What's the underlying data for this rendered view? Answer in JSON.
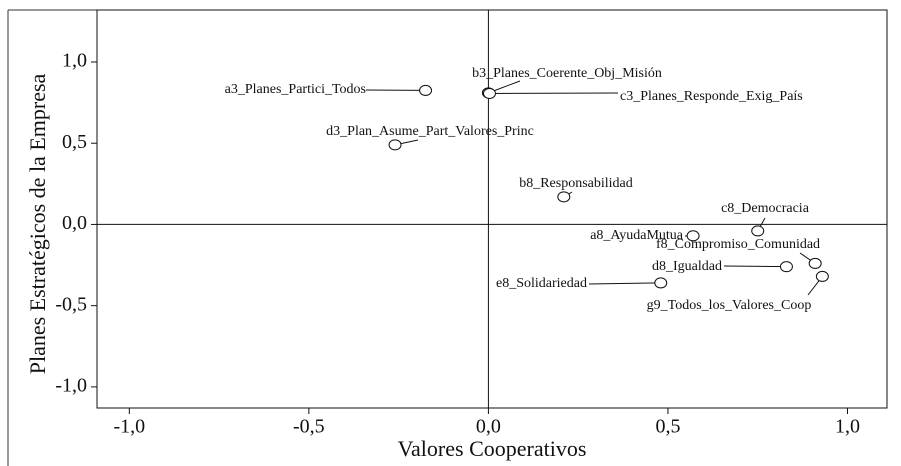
{
  "chart_data": {
    "type": "scatter",
    "x_label": "Valores Cooperativos",
    "y_label": "Planes Estratégicos de la Empresa",
    "xlim": [
      -1.09,
      1.11
    ],
    "ylim": [
      -1.13,
      1.32
    ],
    "xticks": [
      {
        "value": -1.0,
        "label": "-1,0"
      },
      {
        "value": -0.5,
        "label": "-0,5"
      },
      {
        "value": 0.0,
        "label": "0,0"
      },
      {
        "value": 0.5,
        "label": "0,5"
      },
      {
        "value": 1.0,
        "label": "1,0"
      }
    ],
    "yticks": [
      {
        "value": -1.0,
        "label": "-1,0"
      },
      {
        "value": -0.5,
        "label": "-0,5"
      },
      {
        "value": 0.0,
        "label": "0,0"
      },
      {
        "value": 0.5,
        "label": "0,5"
      },
      {
        "value": 1.0,
        "label": "1,0"
      }
    ],
    "points": [
      {
        "name": "a3_Planes_Partici_Todos",
        "x": -0.175,
        "y": 0.825
      },
      {
        "name": "b3_Planes_Coerente_Obj_Misión",
        "x": 0.0,
        "y": 0.81
      },
      {
        "name": "c3_Planes_Responde_Exig_País",
        "x": 0.003,
        "y": 0.806
      },
      {
        "name": "d3_Plan_Asume_Part_Valores_Princ",
        "x": -0.26,
        "y": 0.49
      },
      {
        "name": "b8_Responsabilidad",
        "x": 0.21,
        "y": 0.17
      },
      {
        "name": "c8_Democracia",
        "x": 0.75,
        "y": -0.04
      },
      {
        "name": "a8_AyudaMutua",
        "x": 0.57,
        "y": -0.07
      },
      {
        "name": "f8_Compromiso_Comunidad",
        "x": 0.91,
        "y": -0.24
      },
      {
        "name": "d8_Igualdad",
        "x": 0.83,
        "y": -0.26
      },
      {
        "name": "g9_Todos_los_Valores_Coop",
        "x": 0.93,
        "y": -0.32
      },
      {
        "name": "e8_Solidariedad",
        "x": 0.48,
        "y": -0.36
      }
    ]
  }
}
